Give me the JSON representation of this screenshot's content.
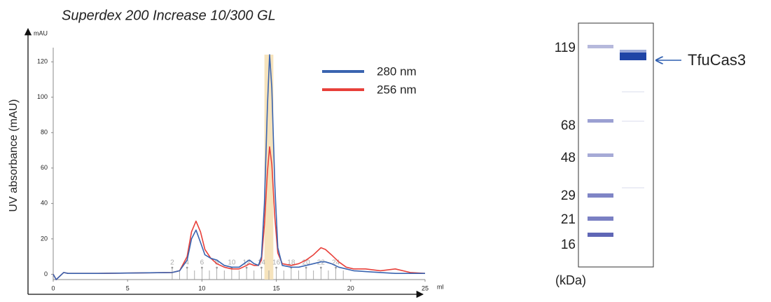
{
  "chart_data": {
    "type": "line",
    "title": "Superdex 200 Increase 10/300 GL",
    "y_label": "UV absorbance (mAU)",
    "y_unit": "mAU",
    "x_unit": "ml",
    "x": [
      0,
      0.2,
      0.7,
      1,
      3,
      6,
      8,
      8.5,
      9,
      9.3,
      9.6,
      9.9,
      10.2,
      10.6,
      11,
      11.5,
      12,
      12.5,
      13,
      13.2,
      13.5,
      13.8,
      14,
      14.2,
      14.4,
      14.55,
      14.7,
      14.9,
      15.1,
      15.4,
      16,
      16.5,
      17,
      17.5,
      18,
      18.3,
      18.7,
      19.2,
      19.7,
      20.2,
      21,
      22,
      23,
      24,
      25
    ],
    "series": [
      {
        "name": "280 nm",
        "color": "#3a64b0",
        "values": [
          0,
          -3,
          1,
          0.5,
          0.5,
          0.8,
          1,
          2,
          8,
          20,
          25,
          18,
          11,
          9,
          8,
          5,
          4,
          4,
          7,
          8,
          6,
          5,
          10,
          40,
          95,
          124,
          105,
          50,
          15,
          5,
          4,
          4,
          5,
          6,
          7,
          7,
          6,
          4,
          3,
          2,
          1.5,
          1,
          0.5,
          0.5,
          0.5
        ]
      },
      {
        "name": "256 nm",
        "color": "#e8403a",
        "values": [
          0,
          -3,
          1,
          0.5,
          0.5,
          0.8,
          1,
          2,
          10,
          24,
          30,
          24,
          14,
          9,
          6,
          4,
          3,
          3,
          5,
          6,
          5,
          5,
          8,
          28,
          58,
          72,
          62,
          32,
          12,
          6,
          5,
          6,
          8,
          11,
          15,
          14,
          11,
          7,
          4,
          3,
          3,
          2,
          3,
          1,
          0.5
        ]
      }
    ],
    "xlim": [
      0,
      25
    ],
    "xticks": [
      0,
      5,
      10,
      15,
      20,
      25
    ],
    "ylim": [
      -3,
      128
    ],
    "yticks": [
      0,
      20,
      40,
      60,
      80,
      100,
      120
    ],
    "grid": false,
    "legend": "upper right",
    "highlight": [
      14.2,
      14.8
    ],
    "highlight_color": "#f5deb0",
    "fraction_ticks": [
      {
        "value": 8,
        "label": "2"
      },
      8.5,
      {
        "value": 9,
        "label": "4"
      },
      9.5,
      {
        "value": 10,
        "label": "6"
      },
      10.5,
      {
        "value": 11,
        "label": "8"
      },
      11.5,
      {
        "value": 12,
        "label": "10"
      },
      12.5,
      {
        "value": 13,
        "label": "12"
      },
      13.5,
      {
        "value": 14,
        "label": "14"
      },
      14.5,
      {
        "value": 15,
        "label": "16"
      },
      15.5,
      {
        "value": 16,
        "label": "18"
      },
      16.5,
      {
        "value": 17,
        "label": "20"
      },
      17.5,
      {
        "value": 18,
        "label": "22"
      },
      18.5,
      {
        "value": 19,
        "label": "24"
      },
      19.5
    ]
  },
  "gel": {
    "marker_labels": [
      "119",
      "68",
      "48",
      "29",
      "21",
      "16"
    ],
    "unit": "(kDa)",
    "band_label": "TfuCas3"
  }
}
